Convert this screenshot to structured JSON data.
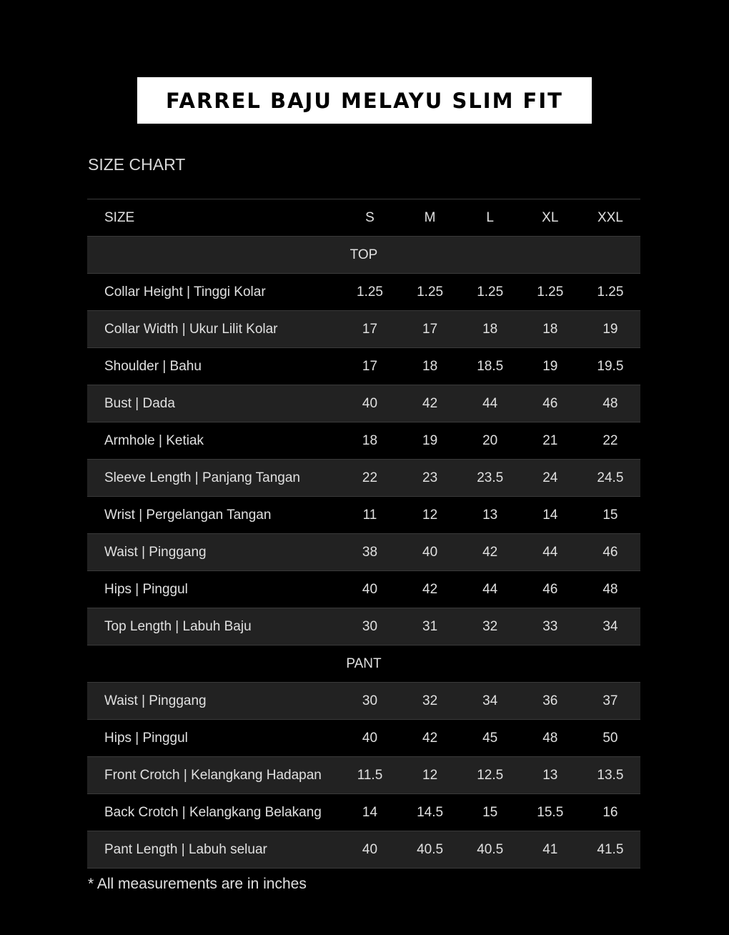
{
  "title": "FARREL BAJU MELAYU SLIM FIT",
  "subtitle": "SIZE CHART",
  "header": {
    "label": "SIZE",
    "sizes": [
      "S",
      "M",
      "L",
      "XL",
      "XXL"
    ]
  },
  "sections": [
    {
      "name": "TOP",
      "rows": [
        {
          "label": "Collar Height | Tinggi Kolar",
          "values": [
            "1.25",
            "1.25",
            "1.25",
            "1.25",
            "1.25"
          ]
        },
        {
          "label": "Collar Width | Ukur Lilit Kolar",
          "values": [
            "17",
            "17",
            "18",
            "18",
            "19"
          ]
        },
        {
          "label": "Shoulder | Bahu",
          "values": [
            "17",
            "18",
            "18.5",
            "19",
            "19.5"
          ]
        },
        {
          "label": "Bust | Dada",
          "values": [
            "40",
            "42",
            "44",
            "46",
            "48"
          ]
        },
        {
          "label": "Armhole | Ketiak",
          "values": [
            "18",
            "19",
            "20",
            "21",
            "22"
          ]
        },
        {
          "label": "Sleeve Length | Panjang Tangan",
          "values": [
            "22",
            "23",
            "23.5",
            "24",
            "24.5"
          ]
        },
        {
          "label": "Wrist | Pergelangan Tangan",
          "values": [
            "11",
            "12",
            "13",
            "14",
            "15"
          ]
        },
        {
          "label": "Waist | Pinggang",
          "values": [
            "38",
            "40",
            "42",
            "44",
            "46"
          ]
        },
        {
          "label": "Hips | Pinggul",
          "values": [
            "40",
            "42",
            "44",
            "46",
            "48"
          ]
        },
        {
          "label": "Top Length | Labuh Baju",
          "values": [
            "30",
            "31",
            "32",
            "33",
            "34"
          ]
        }
      ]
    },
    {
      "name": "PANT",
      "rows": [
        {
          "label": "Waist | Pinggang",
          "values": [
            "30",
            "32",
            "34",
            "36",
            "37"
          ]
        },
        {
          "label": "Hips | Pinggul",
          "values": [
            "40",
            "42",
            "45",
            "48",
            "50"
          ]
        },
        {
          "label": "Front Crotch | Kelangkang Hadapan",
          "values": [
            "11.5",
            "12",
            "12.5",
            "13",
            "13.5"
          ]
        },
        {
          "label": "Back Crotch | Kelangkang Belakang",
          "values": [
            "14",
            "14.5",
            "15",
            "15.5",
            "16"
          ]
        },
        {
          "label": "Pant Length | Labuh seluar",
          "values": [
            "40",
            "40.5",
            "40.5",
            "41",
            "41.5"
          ]
        }
      ]
    }
  ],
  "note": "* All measurements are in inches",
  "colors": {
    "background": "#000000",
    "stripe": "#222222",
    "title_box": "#ffffff",
    "border": "#3a3a3a"
  }
}
